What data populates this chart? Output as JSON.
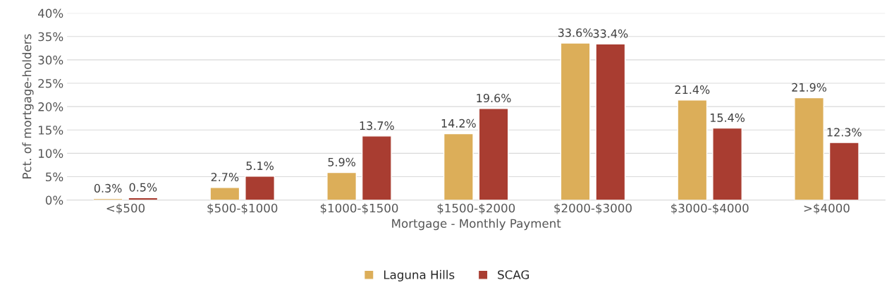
{
  "chart_data": {
    "type": "bar",
    "xlabel": "Mortgage - Monthly Payment",
    "ylabel": "Pct. of mortgage-holders",
    "categories": [
      "<$500",
      "$500-$1000",
      "$1000-$1500",
      "$1500-$2000",
      "$2000-$3000",
      "$3000-$4000",
      ">$4000"
    ],
    "series": [
      {
        "name": "Laguna Hills",
        "color": "#dcae59",
        "values": [
          0.3,
          2.7,
          5.9,
          14.2,
          33.6,
          21.4,
          21.9
        ],
        "value_labels": [
          "0.3%",
          "2.7%",
          "5.9%",
          "14.2%",
          "33.6%",
          "21.4%",
          "21.9%"
        ]
      },
      {
        "name": "SCAG",
        "color": "#a93d31",
        "values": [
          0.5,
          5.1,
          13.7,
          19.6,
          33.4,
          15.4,
          12.3
        ],
        "value_labels": [
          "0.5%",
          "5.1%",
          "13.7%",
          "19.6%",
          "33.4%",
          "15.4%",
          "12.3%"
        ]
      }
    ],
    "ylim": [
      0,
      40
    ],
    "yticks": [
      {
        "value": 0,
        "label": "0%"
      },
      {
        "value": 5,
        "label": "5%"
      },
      {
        "value": 10,
        "label": "10%"
      },
      {
        "value": 15,
        "label": "15%"
      },
      {
        "value": 20,
        "label": "20%"
      },
      {
        "value": 25,
        "label": "25%"
      },
      {
        "value": 30,
        "label": "30%"
      },
      {
        "value": 35,
        "label": "35%"
      },
      {
        "value": 40,
        "label": "40%"
      }
    ],
    "grid": "y",
    "legend": "bottom"
  }
}
